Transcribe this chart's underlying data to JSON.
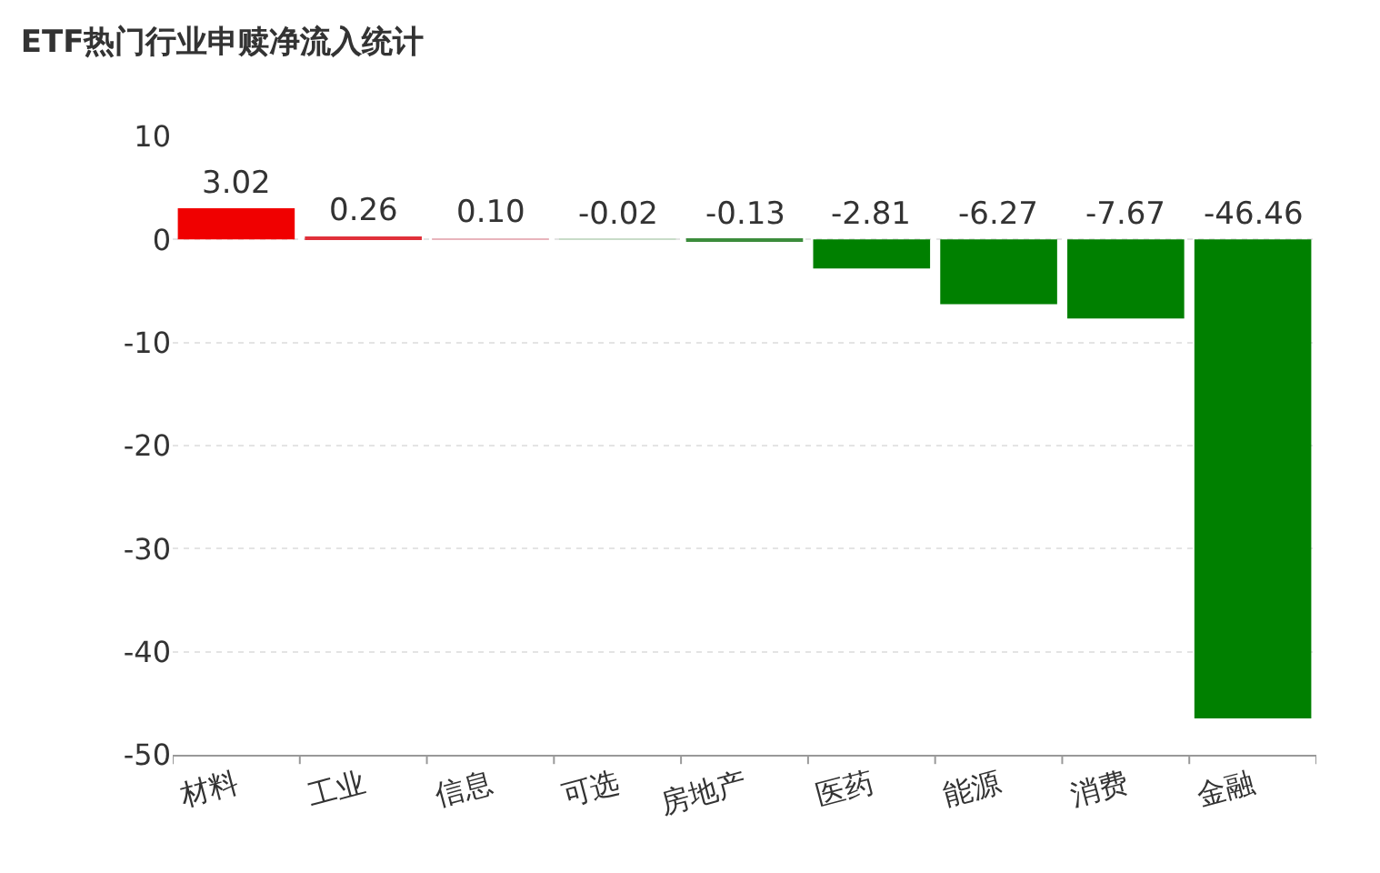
{
  "chart_data": {
    "type": "bar",
    "title": "ETF热门行业申赎净流入统计",
    "categories": [
      "材料",
      "工业",
      "信息",
      "可选",
      "房地产",
      "医药",
      "能源",
      "消费",
      "金融"
    ],
    "values": [
      3.02,
      0.26,
      0.1,
      -0.02,
      -0.13,
      -2.81,
      -6.27,
      -7.67,
      -46.46
    ],
    "colors": [
      "#f00000",
      "#e0303a",
      "#e8b4bc",
      "#c8dcc8",
      "#3c8c3c",
      "#008000",
      "#008000",
      "#008000",
      "#008000"
    ],
    "value_labels": [
      "3.02",
      "0.26",
      "0.10",
      "-0.02",
      "-0.13",
      "-2.81",
      "-6.27",
      "-7.67",
      "-46.46"
    ],
    "ylim": [
      -50,
      10
    ],
    "yticks": [
      -50,
      -40,
      -30,
      -20,
      -10,
      0,
      10
    ],
    "grid": "y"
  }
}
